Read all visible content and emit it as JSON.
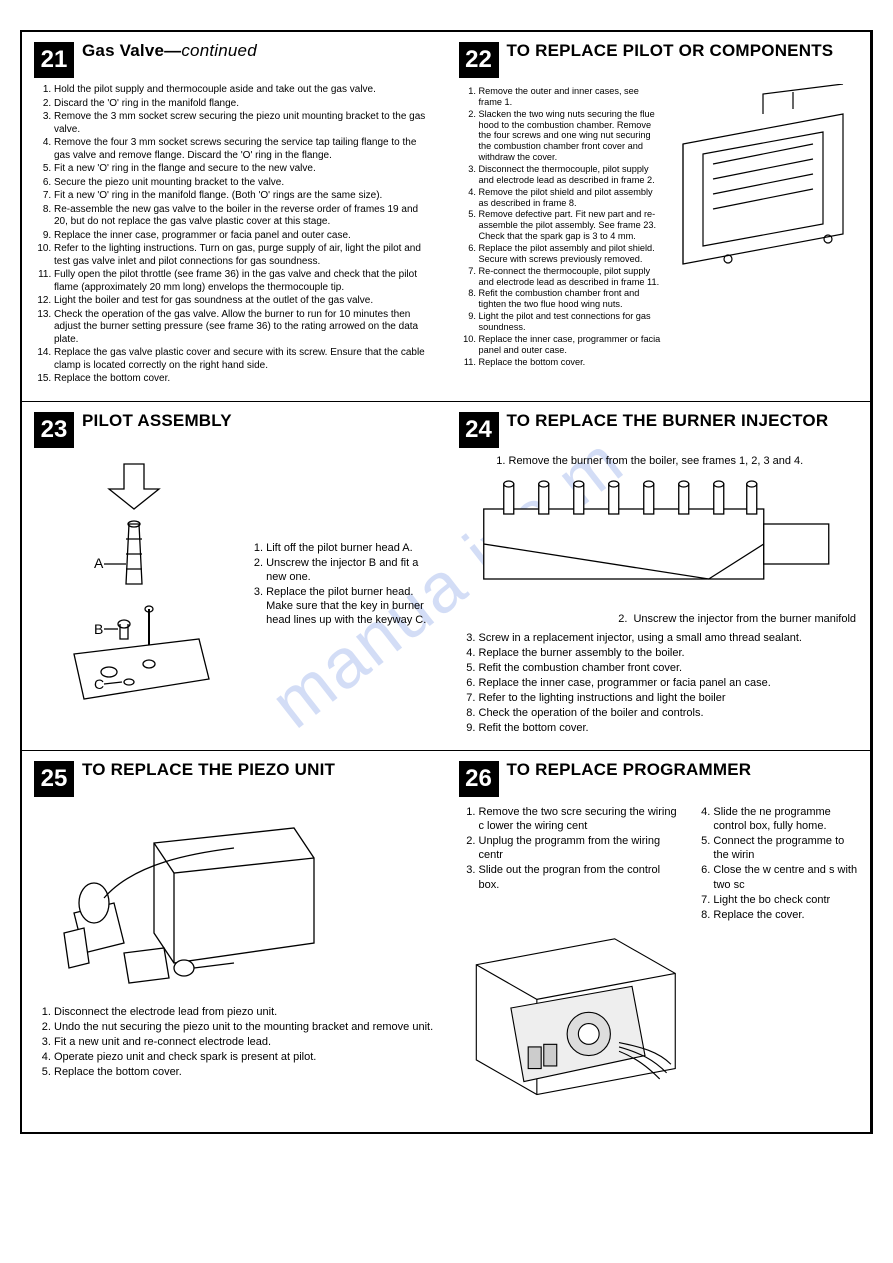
{
  "watermark": "manua   ive    m",
  "panel21": {
    "num": "21",
    "title_main": "Gas Valve—",
    "title_cont": "continued",
    "steps": [
      "Hold the pilot supply and thermocouple aside and take out the gas valve.",
      "Discard the 'O' ring in the manifold flange.",
      "Remove the 3 mm socket screw securing the piezo unit mounting bracket to the gas valve.",
      "Remove the four 3 mm socket screws securing the service tap tailing flange to the gas valve and remove flange. Discard the 'O' ring in the flange.",
      "Fit a new 'O' ring in the flange and secure to the new valve.",
      "Secure the piezo unit mounting bracket to the valve.",
      "Fit a new 'O' ring in the manifold flange. (Both 'O' rings are the same size).",
      "Re-assemble the new gas valve to the boiler in the reverse order of frames 19 and 20, but do not replace the gas valve plastic cover at this stage.",
      "Replace the inner case, programmer or facia panel and outer case.",
      "Refer to the lighting instructions. Turn on gas, purge supply of air, light the pilot and test gas valve inlet and pilot connections for gas soundness.",
      "Fully open the pilot throttle (see frame 36) in the gas valve and check that the pilot flame (approximately 20 mm long) envelops the thermocouple tip.",
      "Light the boiler and test for gas soundness at the outlet of the gas valve.",
      "Check the operation of the gas valve. Allow the burner to run for 10 minutes then adjust the burner setting pressure (see frame 36) to the rating arrowed on the data plate.",
      "Replace the gas valve plastic cover and secure with its screw. Ensure that the cable clamp is located correctly on the right hand side.",
      "Replace the bottom cover."
    ]
  },
  "panel22": {
    "num": "22",
    "title": "TO REPLACE PILOT OR COMPONENTS",
    "steps": [
      "Remove the outer and inner cases, see frame 1.",
      "Slacken the two wing nuts securing the flue hood to the combustion chamber. Remove the four screws and one wing nut securing the combustion chamber front cover and withdraw the cover.",
      "Disconnect the thermocouple, pilot supply and electrode lead as described in frame 2.",
      "Remove the pilot shield and pilot assembly as described in frame 8.",
      "Remove defective part. Fit new part and re-assemble the pilot assembly. See frame 23. Check that the spark gap is 3 to 4 mm.",
      "Replace the pilot assembly and pilot shield. Secure with screws previously removed.",
      "Re-connect the thermocouple, pilot supply and electrode lead as described in frame 11.",
      "Refit the combustion chamber front and tighten the two flue hood wing nuts.",
      "Light the pilot and test connections for gas soundness.",
      "Replace the inner case, programmer or facia panel and outer case.",
      "Replace the bottom cover."
    ]
  },
  "panel23": {
    "num": "23",
    "title": "PILOT ASSEMBLY",
    "labels": {
      "a": "A",
      "b": "B",
      "c": "C"
    },
    "steps": [
      "Lift off the pilot burner head A.",
      "Unscrew the injector B and fit a new one.",
      "Replace the pilot burner head. Make sure that the key in burner head lines up with the keyway C."
    ]
  },
  "panel24": {
    "num": "24",
    "title": "TO REPLACE THE BURNER INJECTOR",
    "top_steps": [
      "Remove the burner from the boiler, see frames 1, 2, 3 and 4."
    ],
    "caption": "Unscrew the injector from the burner manifold",
    "caption_num": "2.",
    "steps": [
      "Screw in a replacement injector, using a small amo thread sealant.",
      "Replace the burner assembly to the boiler.",
      "Refit the combustion chamber front cover.",
      "Replace the inner case, programmer or facia panel an case.",
      "Refer to the lighting instructions and light the boiler",
      "Check the operation of the boiler and controls.",
      "Refit the bottom cover."
    ],
    "steps_start": 3
  },
  "panel25": {
    "num": "25",
    "title": "TO REPLACE THE PIEZO UNIT",
    "steps": [
      "Disconnect the electrode lead from piezo unit.",
      "Undo the nut securing the piezo unit to the mounting bracket and remove unit.",
      "Fit a new unit and re-connect electrode lead.",
      "Operate piezo unit and check spark is present at pilot.",
      "Replace the bottom cover."
    ]
  },
  "panel26": {
    "num": "26",
    "title": "TO REPLACE PROGRAMMER",
    "steps_a": [
      "Remove the two scre securing the wiring c lower the wiring cent",
      "Unplug the programm from the wiring centr",
      "Slide out the progran from the control box."
    ],
    "steps_b": [
      "Slide the ne programme control box, fully home.",
      "Connect the programme to the wirin",
      "Close the w centre and s with two sc",
      "Light the bo check contr",
      "Replace the cover."
    ],
    "steps_b_start": 4
  }
}
